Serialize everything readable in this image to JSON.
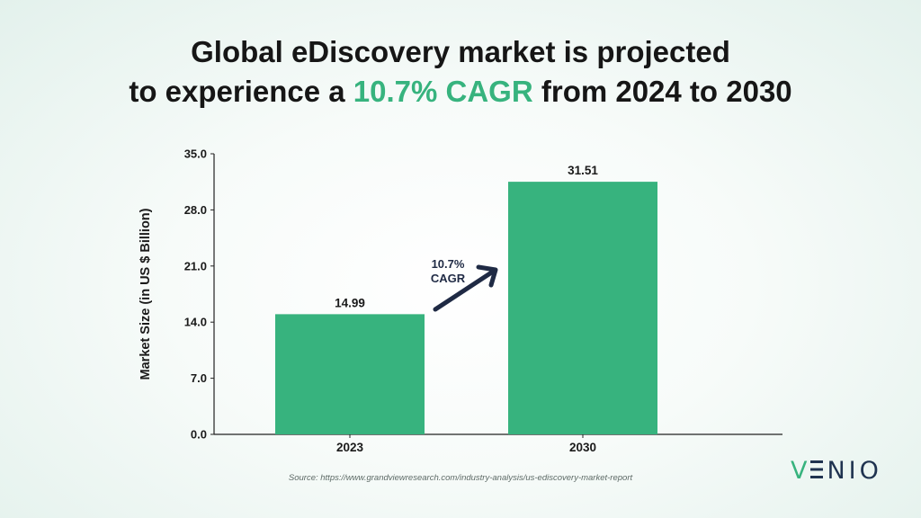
{
  "title": {
    "line1": "Global eDiscovery market is projected",
    "line2_prefix": "to experience a ",
    "line2_highlight": "10.7% CAGR",
    "line2_suffix": " from 2024 to 2030"
  },
  "chart_data": {
    "type": "bar",
    "categories": [
      "2023",
      "2030"
    ],
    "values": [
      14.99,
      31.51
    ],
    "data_labels": [
      "14.99",
      "31.51"
    ],
    "ylabel": "Market Size (in US $ Billion)",
    "xlabel": "",
    "ylim": [
      0,
      35
    ],
    "yticks": [
      "0.0",
      "7.0",
      "14.0",
      "21.0",
      "28.0",
      "35.0"
    ],
    "ytick_values": [
      0,
      7,
      14,
      21,
      28,
      35
    ],
    "grid": false,
    "bar_color": "#37b37e",
    "annotation": {
      "line1": "10.7%",
      "line2": "CAGR"
    },
    "arrow_color": "#1f2a44"
  },
  "source": "Source: https://www.grandviewresearch.com/industry-analysis/us-ediscovery-market-report",
  "logo": {
    "prefix": "V",
    "rest": "NIO"
  },
  "colors": {
    "accent": "#37b37e",
    "dark": "#1f2a44"
  }
}
